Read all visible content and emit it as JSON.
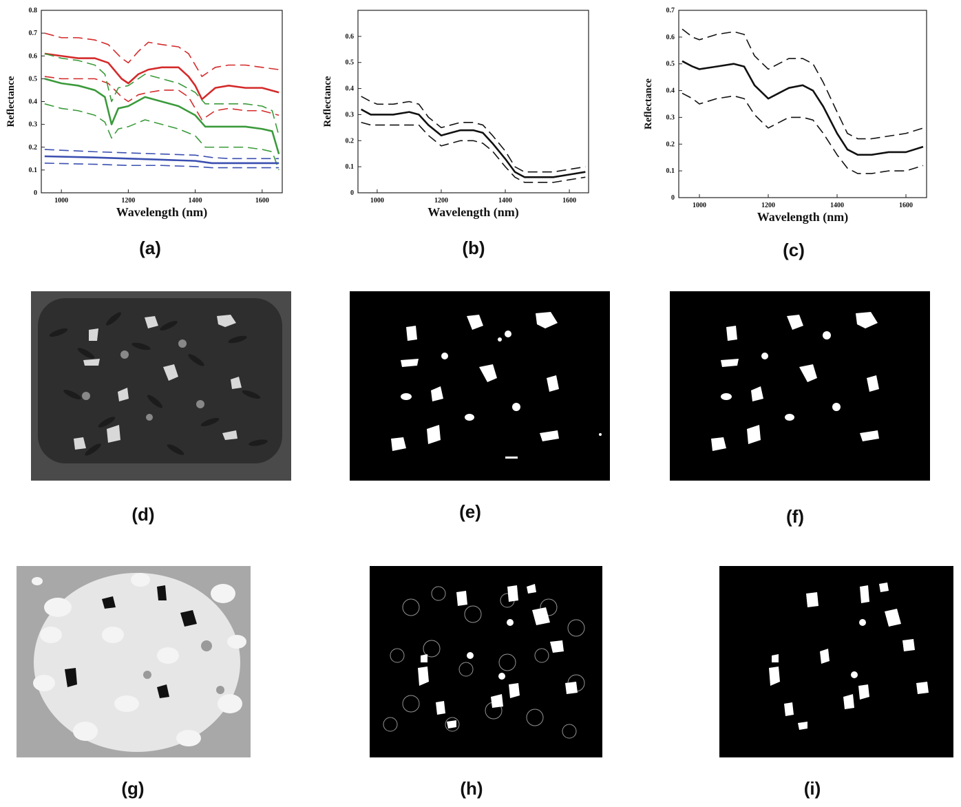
{
  "captions": [
    "(a)",
    "(b)",
    "(c)",
    "(d)",
    "(e)",
    "(f)",
    "(g)",
    "(h)",
    "(i)"
  ],
  "chart_data": [
    {
      "type": "line",
      "id": "a",
      "xlabel": "Wavelength (nm)",
      "ylabel": "Reflectance",
      "xlim": [
        940,
        1660
      ],
      "ylim": [
        0,
        0.8
      ],
      "xticks": [
        1000,
        1200,
        1400,
        1600
      ],
      "xtick_labels": [
        "1000",
        "1200",
        "1400",
        "1600"
      ],
      "yticks": [
        0,
        0.1,
        0.2,
        0.3,
        0.4,
        0.5,
        0.6,
        0.7,
        0.8
      ],
      "ytick_labels": [
        "0",
        "0.1",
        "0.2",
        "0.3",
        "0.4",
        "0.5",
        "0.6",
        "0.7",
        "0.8"
      ],
      "series": [
        {
          "color": "#d42a2a",
          "dash": false,
          "x": [
            950,
            1000,
            1050,
            1100,
            1140,
            1180,
            1200,
            1230,
            1260,
            1300,
            1350,
            1380,
            1400,
            1420,
            1460,
            1500,
            1550,
            1600,
            1650
          ],
          "y": [
            0.61,
            0.6,
            0.59,
            0.59,
            0.57,
            0.5,
            0.48,
            0.52,
            0.54,
            0.55,
            0.55,
            0.51,
            0.47,
            0.41,
            0.46,
            0.47,
            0.46,
            0.46,
            0.44
          ]
        },
        {
          "color": "#d42a2a",
          "dash": true,
          "x": [
            950,
            1000,
            1050,
            1100,
            1140,
            1180,
            1200,
            1230,
            1260,
            1300,
            1350,
            1380,
            1400,
            1420,
            1460,
            1500,
            1550,
            1600,
            1650
          ],
          "y": [
            0.7,
            0.68,
            0.68,
            0.67,
            0.65,
            0.59,
            0.57,
            0.62,
            0.66,
            0.65,
            0.64,
            0.61,
            0.56,
            0.51,
            0.55,
            0.56,
            0.56,
            0.55,
            0.54
          ]
        },
        {
          "color": "#d42a2a",
          "dash": true,
          "x": [
            950,
            1000,
            1050,
            1100,
            1140,
            1180,
            1200,
            1230,
            1260,
            1300,
            1350,
            1380,
            1400,
            1420,
            1460,
            1500,
            1550,
            1600,
            1650
          ],
          "y": [
            0.51,
            0.5,
            0.5,
            0.5,
            0.48,
            0.42,
            0.4,
            0.43,
            0.44,
            0.45,
            0.45,
            0.42,
            0.37,
            0.32,
            0.36,
            0.37,
            0.36,
            0.36,
            0.34
          ]
        },
        {
          "color": "#3a9a3a",
          "dash": false,
          "x": [
            950,
            1000,
            1050,
            1100,
            1130,
            1150,
            1170,
            1200,
            1250,
            1300,
            1350,
            1400,
            1430,
            1500,
            1550,
            1600,
            1630,
            1650
          ],
          "y": [
            0.5,
            0.48,
            0.47,
            0.45,
            0.42,
            0.3,
            0.37,
            0.38,
            0.42,
            0.4,
            0.38,
            0.34,
            0.29,
            0.29,
            0.29,
            0.28,
            0.27,
            0.17
          ]
        },
        {
          "color": "#3a9a3a",
          "dash": true,
          "x": [
            950,
            1000,
            1050,
            1100,
            1130,
            1150,
            1170,
            1200,
            1250,
            1300,
            1350,
            1400,
            1430,
            1500,
            1550,
            1600,
            1630,
            1650
          ],
          "y": [
            0.61,
            0.59,
            0.58,
            0.56,
            0.52,
            0.4,
            0.46,
            0.47,
            0.52,
            0.5,
            0.48,
            0.44,
            0.39,
            0.39,
            0.39,
            0.38,
            0.36,
            0.25
          ]
        },
        {
          "color": "#3a9a3a",
          "dash": true,
          "x": [
            950,
            1000,
            1050,
            1100,
            1130,
            1150,
            1170,
            1200,
            1250,
            1300,
            1350,
            1400,
            1430,
            1500,
            1550,
            1600,
            1630,
            1650
          ],
          "y": [
            0.39,
            0.37,
            0.36,
            0.34,
            0.31,
            0.24,
            0.28,
            0.29,
            0.32,
            0.3,
            0.28,
            0.25,
            0.2,
            0.2,
            0.2,
            0.19,
            0.18,
            0.1
          ]
        },
        {
          "color": "#3a4fb0",
          "dash": false,
          "x": [
            950,
            1100,
            1200,
            1300,
            1400,
            1450,
            1500,
            1550,
            1600,
            1650
          ],
          "y": [
            0.16,
            0.155,
            0.15,
            0.145,
            0.14,
            0.13,
            0.13,
            0.13,
            0.13,
            0.13
          ]
        },
        {
          "color": "#3a4fb0",
          "dash": true,
          "x": [
            950,
            1100,
            1200,
            1300,
            1400,
            1450,
            1500,
            1550,
            1600,
            1650
          ],
          "y": [
            0.19,
            0.18,
            0.175,
            0.17,
            0.165,
            0.155,
            0.15,
            0.15,
            0.15,
            0.15
          ]
        },
        {
          "color": "#3a4fb0",
          "dash": true,
          "x": [
            950,
            1100,
            1200,
            1300,
            1400,
            1450,
            1500,
            1550,
            1600,
            1650
          ],
          "y": [
            0.13,
            0.125,
            0.12,
            0.12,
            0.115,
            0.11,
            0.11,
            0.11,
            0.11,
            0.11
          ]
        }
      ]
    },
    {
      "type": "line",
      "id": "b",
      "xlabel": "Wavelength (nm)",
      "ylabel": "Reflectance",
      "xlim": [
        940,
        1660
      ],
      "ylim": [
        0,
        0.7
      ],
      "xticks": [
        1000,
        1200,
        1400,
        1600
      ],
      "xtick_labels": [
        "1000",
        "1200",
        "1400",
        "1600"
      ],
      "yticks": [
        0,
        0.1,
        0.2,
        0.3,
        0.4,
        0.5,
        0.6
      ],
      "ytick_labels": [
        "0",
        "0.1",
        "0.2",
        "0.3",
        "0.4",
        "0.5",
        "0.6"
      ],
      "series": [
        {
          "color": "#111111",
          "dash": false,
          "x": [
            950,
            980,
            1000,
            1050,
            1100,
            1130,
            1160,
            1200,
            1230,
            1260,
            1300,
            1330,
            1360,
            1400,
            1430,
            1460,
            1500,
            1550,
            1600,
            1650
          ],
          "y": [
            0.32,
            0.3,
            0.3,
            0.3,
            0.31,
            0.3,
            0.26,
            0.22,
            0.23,
            0.24,
            0.24,
            0.23,
            0.19,
            0.13,
            0.08,
            0.06,
            0.06,
            0.06,
            0.07,
            0.08
          ]
        },
        {
          "color": "#111111",
          "dash": true,
          "x": [
            950,
            980,
            1000,
            1050,
            1100,
            1130,
            1160,
            1200,
            1230,
            1260,
            1300,
            1330,
            1360,
            1400,
            1430,
            1460,
            1500,
            1550,
            1600,
            1650
          ],
          "y": [
            0.37,
            0.35,
            0.34,
            0.34,
            0.35,
            0.34,
            0.29,
            0.25,
            0.26,
            0.27,
            0.27,
            0.26,
            0.22,
            0.16,
            0.1,
            0.08,
            0.08,
            0.08,
            0.09,
            0.1
          ]
        },
        {
          "color": "#111111",
          "dash": true,
          "x": [
            950,
            980,
            1000,
            1050,
            1100,
            1130,
            1160,
            1200,
            1230,
            1260,
            1300,
            1330,
            1360,
            1400,
            1430,
            1460,
            1500,
            1550,
            1600,
            1650
          ],
          "y": [
            0.27,
            0.26,
            0.26,
            0.26,
            0.26,
            0.26,
            0.22,
            0.18,
            0.19,
            0.2,
            0.2,
            0.19,
            0.16,
            0.1,
            0.06,
            0.04,
            0.04,
            0.04,
            0.05,
            0.06
          ]
        }
      ]
    },
    {
      "type": "line",
      "id": "c",
      "xlabel": "Wavelength (nm)",
      "ylabel": "Reflectance",
      "xlim": [
        940,
        1660
      ],
      "ylim": [
        0,
        0.7
      ],
      "xticks": [
        1000,
        1200,
        1400,
        1600
      ],
      "xtick_labels": [
        "1000",
        "1200",
        "1400",
        "1600"
      ],
      "yticks": [
        0,
        0.1,
        0.2,
        0.3,
        0.4,
        0.5,
        0.6,
        0.7
      ],
      "ytick_labels": [
        "0",
        "0.1",
        "0.2",
        "0.3",
        "0.4",
        "0.5",
        "0.6",
        "0.7"
      ],
      "series": [
        {
          "color": "#111111",
          "dash": false,
          "x": [
            950,
            980,
            1000,
            1050,
            1100,
            1130,
            1160,
            1200,
            1230,
            1260,
            1300,
            1330,
            1360,
            1400,
            1430,
            1460,
            1500,
            1550,
            1600,
            1650
          ],
          "y": [
            0.51,
            0.49,
            0.48,
            0.49,
            0.5,
            0.49,
            0.42,
            0.37,
            0.39,
            0.41,
            0.42,
            0.4,
            0.34,
            0.24,
            0.18,
            0.16,
            0.16,
            0.17,
            0.17,
            0.19
          ]
        },
        {
          "color": "#111111",
          "dash": true,
          "x": [
            950,
            980,
            1000,
            1050,
            1100,
            1130,
            1160,
            1200,
            1230,
            1260,
            1300,
            1330,
            1360,
            1400,
            1430,
            1460,
            1500,
            1550,
            1600,
            1650
          ],
          "y": [
            0.63,
            0.6,
            0.59,
            0.61,
            0.62,
            0.61,
            0.53,
            0.48,
            0.5,
            0.52,
            0.52,
            0.5,
            0.43,
            0.32,
            0.24,
            0.22,
            0.22,
            0.23,
            0.24,
            0.26
          ]
        },
        {
          "color": "#111111",
          "dash": true,
          "x": [
            950,
            980,
            1000,
            1050,
            1100,
            1130,
            1160,
            1200,
            1230,
            1260,
            1300,
            1330,
            1360,
            1400,
            1430,
            1460,
            1500,
            1550,
            1600,
            1650
          ],
          "y": [
            0.39,
            0.37,
            0.35,
            0.37,
            0.38,
            0.37,
            0.31,
            0.26,
            0.28,
            0.3,
            0.3,
            0.29,
            0.24,
            0.16,
            0.11,
            0.09,
            0.09,
            0.1,
            0.1,
            0.12
          ]
        }
      ]
    }
  ]
}
